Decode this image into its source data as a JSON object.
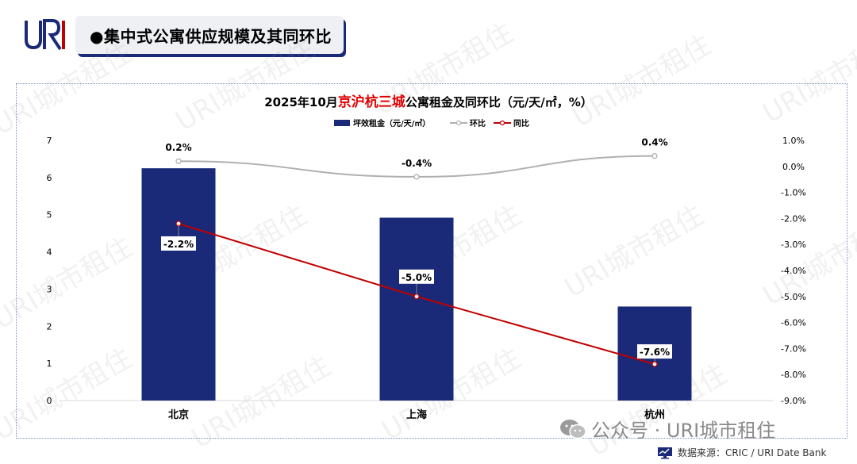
{
  "logo_text": "URI",
  "header": {
    "title": "●集中式公寓供应规模及其同环比"
  },
  "watermark": "URI城市租住",
  "footer": {
    "wechat": "公众号 · URI城市租住",
    "source": "数据来源：CRIC / URI Date Bank"
  },
  "colors": {
    "bar": "#1b2a78",
    "mom": "#b0b0b0",
    "yoy": "#c00000",
    "title_highlight": "#e00000"
  },
  "chart_data": {
    "type": "bar",
    "title_pre": "2025年10月",
    "title_highlight": "京沪杭三城",
    "title_post": "公寓租金及同环比（元/天/㎡，%）",
    "categories": [
      "北京",
      "上海",
      "杭州"
    ],
    "left_ticks": [
      "0",
      "1",
      "2",
      "3",
      "4",
      "5",
      "6",
      "7"
    ],
    "right_ticks": [
      "1.0%",
      "0.0%",
      "-1.0%",
      "-2.0%",
      "-3.0%",
      "-4.0%",
      "-5.0%",
      "-6.0%",
      "-7.0%",
      "-8.0%",
      "-9.0%"
    ],
    "ylim": [
      0,
      7
    ],
    "y2lim": [
      -9,
      1
    ],
    "series": [
      {
        "name": "坪效租金（元/天/㎡）",
        "type": "bar",
        "axis": "left",
        "values": [
          6.25,
          4.92,
          2.53
        ]
      },
      {
        "name": "环比",
        "type": "line",
        "axis": "right",
        "values": [
          0.2,
          -0.4,
          0.4
        ],
        "labels": [
          "0.2%",
          "-0.4%",
          "0.4%"
        ]
      },
      {
        "name": "同比",
        "type": "line",
        "axis": "right",
        "values": [
          -2.2,
          -5.0,
          -7.6
        ],
        "labels": [
          "-2.2%",
          "-5.0%",
          "-7.6%"
        ]
      }
    ],
    "legend": "top-center"
  }
}
